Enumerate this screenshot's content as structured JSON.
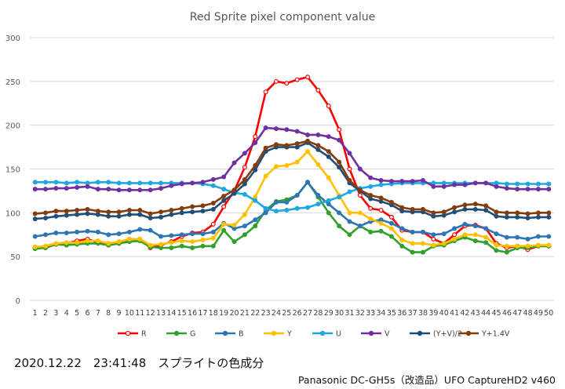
{
  "chart_data": {
    "type": "line",
    "title": "Red Sprite pixel component value",
    "xlabel": "",
    "ylabel": "",
    "ylim": [
      0,
      300
    ],
    "yticks": [
      0,
      50,
      100,
      150,
      200,
      250,
      300
    ],
    "grid": true,
    "legend_position": "bottom",
    "x": [
      1,
      2,
      3,
      4,
      5,
      6,
      7,
      8,
      9,
      10,
      11,
      12,
      13,
      14,
      15,
      16,
      17,
      18,
      19,
      20,
      21,
      22,
      23,
      24,
      25,
      26,
      27,
      28,
      29,
      30,
      31,
      32,
      33,
      34,
      35,
      36,
      37,
      38,
      39,
      40,
      41,
      42,
      43,
      44,
      45,
      46,
      47,
      48,
      49,
      50
    ],
    "series": [
      {
        "name": "R",
        "color": "#ff0000",
        "marker": "hollow",
        "values": [
          60,
          60,
          64,
          65,
          68,
          70,
          66,
          63,
          65,
          70,
          70,
          60,
          63,
          67,
          73,
          77,
          78,
          87,
          107,
          125,
          152,
          187,
          238,
          250,
          248,
          252,
          255,
          240,
          222,
          195,
          150,
          120,
          105,
          103,
          95,
          80,
          78,
          78,
          70,
          65,
          75,
          85,
          86,
          82,
          65,
          60,
          62,
          58,
          62,
          62
        ]
      },
      {
        "name": "G",
        "color": "#33a02c",
        "marker": "filled",
        "values": [
          59,
          60,
          64,
          63,
          64,
          65,
          65,
          63,
          65,
          67,
          68,
          61,
          60,
          60,
          62,
          60,
          62,
          62,
          80,
          67,
          75,
          85,
          103,
          113,
          115,
          120,
          135,
          118,
          100,
          85,
          75,
          85,
          78,
          79,
          73,
          62,
          55,
          55,
          62,
          63,
          68,
          72,
          68,
          66,
          57,
          55,
          60,
          60,
          62,
          62
        ]
      },
      {
        "name": "B",
        "color": "#2e75b6",
        "marker": "filled",
        "values": [
          73,
          75,
          77,
          77,
          78,
          79,
          78,
          75,
          76,
          78,
          81,
          80,
          73,
          74,
          75,
          76,
          76,
          78,
          88,
          82,
          85,
          92,
          100,
          112,
          112,
          120,
          135,
          120,
          110,
          100,
          90,
          85,
          90,
          92,
          88,
          82,
          78,
          78,
          75,
          76,
          82,
          87,
          85,
          82,
          76,
          72,
          72,
          70,
          73,
          73
        ]
      },
      {
        "name": "Y",
        "color": "#ffc000",
        "marker": "filled",
        "values": [
          61,
          62,
          65,
          66,
          66,
          68,
          68,
          65,
          67,
          70,
          70,
          63,
          64,
          66,
          68,
          67,
          69,
          71,
          87,
          86,
          98,
          118,
          142,
          153,
          154,
          158,
          170,
          155,
          140,
          120,
          100,
          100,
          93,
          88,
          82,
          69,
          65,
          65,
          63,
          65,
          70,
          75,
          75,
          72,
          63,
          62,
          62,
          62,
          63,
          63
        ]
      },
      {
        "name": "U",
        "color": "#1ea7e1",
        "marker": "filled",
        "values": [
          135,
          135,
          135,
          134,
          135,
          134,
          135,
          135,
          134,
          134,
          134,
          134,
          134,
          134,
          134,
          134,
          133,
          131,
          127,
          123,
          121,
          114,
          105,
          102,
          103,
          105,
          106,
          110,
          114,
          118,
          124,
          128,
          130,
          132,
          133,
          134,
          134,
          134,
          134,
          134,
          134,
          134,
          134,
          134,
          134,
          133,
          133,
          133,
          133,
          133
        ]
      },
      {
        "name": "V",
        "color": "#7030a0",
        "marker": "filled",
        "values": [
          127,
          127,
          128,
          128,
          129,
          130,
          127,
          127,
          126,
          126,
          126,
          126,
          128,
          131,
          133,
          134,
          135,
          138,
          141,
          157,
          168,
          180,
          197,
          196,
          195,
          193,
          189,
          189,
          187,
          183,
          168,
          150,
          140,
          137,
          136,
          136,
          136,
          137,
          130,
          130,
          132,
          132,
          134,
          134,
          130,
          128,
          127,
          127,
          127,
          127
        ]
      },
      {
        "name": "(Y+V)/2",
        "color": "#1f4e79",
        "marker": "filled",
        "values": [
          93,
          94,
          96,
          97,
          98,
          99,
          98,
          96,
          96,
          98,
          98,
          94,
          95,
          98,
          100,
          101,
          102,
          104,
          114,
          122,
          133,
          149,
          170,
          175,
          175,
          175,
          180,
          172,
          164,
          152,
          134,
          125,
          116,
          113,
          109,
          102,
          101,
          101,
          96,
          97,
          101,
          104,
          104,
          103,
          96,
          95,
          95,
          94,
          95,
          95
        ]
      },
      {
        "name": "Y+1.4V",
        "color": "#843c0c",
        "marker": "filled",
        "values": [
          99,
          100,
          102,
          102,
          103,
          104,
          102,
          101,
          101,
          103,
          103,
          99,
          101,
          103,
          105,
          107,
          108,
          111,
          119,
          126,
          138,
          154,
          174,
          178,
          177,
          179,
          182,
          177,
          170,
          158,
          137,
          126,
          120,
          117,
          112,
          106,
          104,
          104,
          100,
          101,
          106,
          109,
          110,
          108,
          101,
          100,
          100,
          99,
          100,
          100
        ]
      }
    ]
  },
  "captions": {
    "left": "2020.12.22　23:41:48　スプライトの色成分",
    "right": "Panasonic DC-GH5s（改造品）UFO CaptureHD2 v460"
  }
}
